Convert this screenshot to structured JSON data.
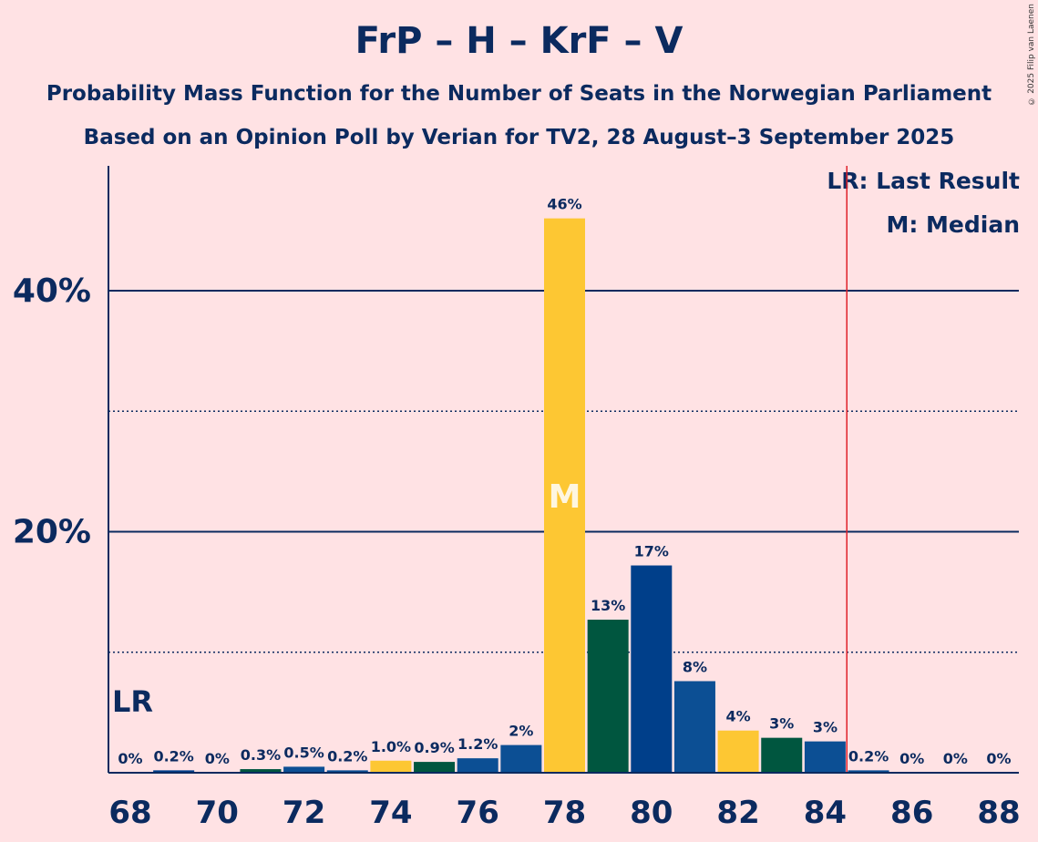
{
  "title": "FrP – H – KrF – V",
  "subtitle1": "Probability Mass Function for the Number of Seats in the Norwegian Parliament",
  "subtitle2": "Based on an Opinion Poll by Verian for TV2, 28 August–3 September 2025",
  "copyright": "© 2025 Filip van Laenen",
  "legend": {
    "lr": "LR: Last Result",
    "m": "M: Median"
  },
  "markers": {
    "last_result_label": "LR",
    "median_label": "M"
  },
  "colors": {
    "background": "#ffe2e4",
    "text": "#0b2a5f",
    "lr_line": "#e0202a",
    "party_colors": [
      "#003f8a",
      "#00563f",
      "#0c4f94",
      "#fdc733"
    ]
  },
  "chart_data": {
    "type": "bar",
    "xlabel": "",
    "ylabel": "",
    "ylim": [
      0,
      50
    ],
    "y_ticks_major": [
      20,
      40
    ],
    "y_tick_labels": [
      "20%",
      "40%"
    ],
    "y_ticks_minor": [
      10,
      30
    ],
    "x_tick_labels": [
      "68",
      "70",
      "72",
      "74",
      "76",
      "78",
      "80",
      "82",
      "84",
      "86",
      "88"
    ],
    "categories": [
      68,
      69,
      70,
      71,
      72,
      73,
      74,
      75,
      76,
      77,
      78,
      79,
      80,
      81,
      82,
      83,
      84,
      85,
      86,
      87,
      88
    ],
    "values": [
      0,
      0.2,
      0,
      0.3,
      0.5,
      0.2,
      1.0,
      0.9,
      1.2,
      2.3,
      46,
      12.7,
      17.2,
      7.6,
      3.5,
      2.9,
      2.6,
      0.2,
      0,
      0,
      0
    ],
    "labels": [
      "0%",
      "0.2%",
      "0%",
      "0.3%",
      "0.5%",
      "0.2%",
      "1.0%",
      "0.9%",
      "1.2%",
      "2%",
      "46%",
      "13%",
      "17%",
      "8%",
      "4%",
      "3%",
      "3%",
      "0.2%",
      "0%",
      "0%",
      "0%"
    ],
    "bar_colors": [
      "#003f8a",
      "#003f8a",
      "#00563f",
      "#00563f",
      "#0c4f94",
      "#0c4f94",
      "#fdc733",
      "#00563f",
      "#0c4f94",
      "#0c4f94",
      "#fdc733",
      "#00563f",
      "#003f8a",
      "#0c4f94",
      "#fdc733",
      "#00563f",
      "#0c4f94",
      "#0c4f94",
      "#00563f",
      "#0c4f94",
      "#fdc733"
    ],
    "last_result_seat": 68,
    "median_seat": 78,
    "majority_line_after_seat": 84
  }
}
